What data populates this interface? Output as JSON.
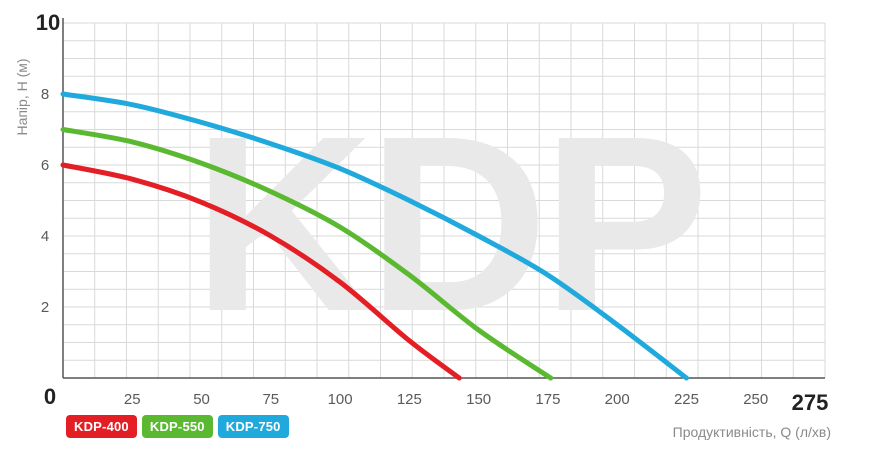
{
  "watermark": "KDP",
  "chart_data": {
    "type": "line",
    "xlabel": "Продуктивність, Q (л/хв)",
    "ylabel": "Напір, Н (м)",
    "xlim": [
      0,
      275
    ],
    "ylim": [
      0,
      10
    ],
    "x_tick_labels": [
      "0",
      "25",
      "50",
      "75",
      "100",
      "125",
      "150",
      "175",
      "200",
      "225",
      "250",
      "275"
    ],
    "y_tick_labels": [
      "0",
      "2",
      "4",
      "6",
      "8",
      "10"
    ],
    "grid": true,
    "legend_position": "bottom-left",
    "series": [
      {
        "name": "KDP-400",
        "color": "#e31e24",
        "x": [
          0,
          25,
          50,
          75,
          100,
          125,
          143
        ],
        "y": [
          6.0,
          5.6,
          4.95,
          4.0,
          2.7,
          1.05,
          0.0
        ]
      },
      {
        "name": "KDP-550",
        "color": "#5ab931",
        "x": [
          0,
          25,
          50,
          75,
          100,
          125,
          150,
          176
        ],
        "y": [
          7.0,
          6.65,
          6.05,
          5.25,
          4.25,
          2.9,
          1.35,
          0.0
        ]
      },
      {
        "name": "KDP-750",
        "color": "#1fa9dc",
        "x": [
          0,
          25,
          50,
          75,
          100,
          125,
          150,
          175,
          200,
          225
        ],
        "y": [
          8.0,
          7.7,
          7.2,
          6.6,
          5.9,
          5.0,
          4.0,
          2.9,
          1.5,
          0.0
        ]
      }
    ]
  }
}
